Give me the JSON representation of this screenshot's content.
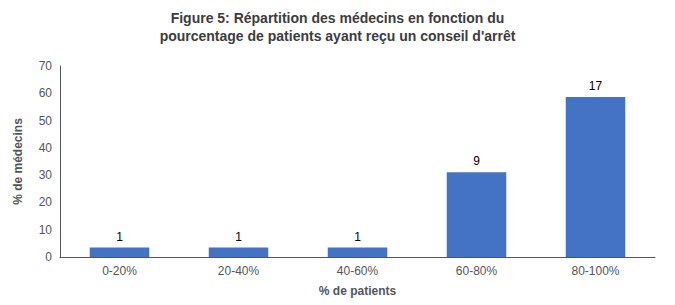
{
  "chart_data": {
    "type": "bar",
    "title": "Figure 5: Répartition des médecins en fonction du\npourcentage de patients ayant reçu un conseil d'arrêt",
    "xlabel": "% de patients",
    "ylabel": "% de médecins",
    "categories": [
      "0-20%",
      "20-40%",
      "40-60%",
      "60-80%",
      "80-100%"
    ],
    "values": [
      3.45,
      3.45,
      3.45,
      31.03,
      58.62
    ],
    "counts": [
      1,
      1,
      1,
      9,
      17
    ],
    "color": "#4472C4",
    "ylim": [
      0,
      70
    ],
    "yticks": [
      0,
      10,
      20,
      30,
      40,
      50,
      60,
      70
    ],
    "grid": false
  }
}
